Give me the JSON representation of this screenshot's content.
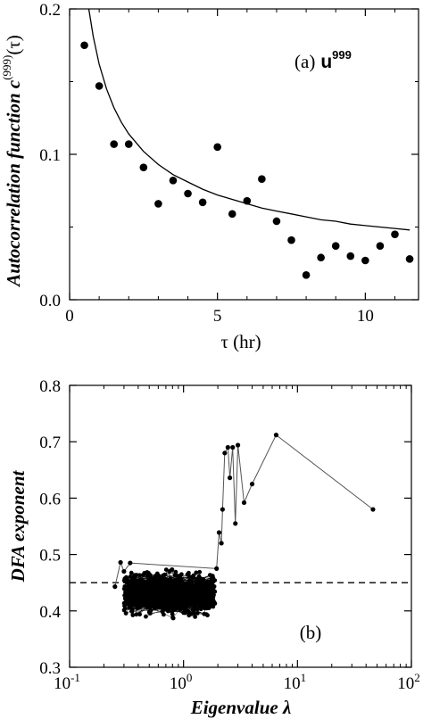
{
  "chart_data": [
    {
      "type": "scatter",
      "panel_label": "(a)",
      "annotation_symbol": "u",
      "annotation_superscript": "999",
      "ylabel_main": "Autocorrelation function c",
      "ylabel_sup": "(999)",
      "ylabel_tail": "(τ)",
      "xlabel": "τ (hr)",
      "xlim": [
        0,
        11.8
      ],
      "ylim": [
        0,
        0.2
      ],
      "xticks": [
        0,
        5,
        10
      ],
      "xtick_labels": [
        "0",
        "5",
        "10"
      ],
      "yticks": [
        0.0,
        0.1,
        0.2
      ],
      "ytick_labels": [
        "0.0",
        "0.1",
        "0.2"
      ],
      "grid": false,
      "series": [
        {
          "kind": "points",
          "x": [
            0.5,
            1.0,
            1.5,
            2.0,
            2.5,
            3.0,
            3.5,
            4.0,
            4.5,
            5.0,
            5.5,
            6.0,
            6.5,
            7.0,
            7.5,
            8.0,
            8.5,
            9.0,
            9.5,
            10.0,
            10.5,
            11.0,
            11.5
          ],
          "y": [
            0.175,
            0.147,
            0.107,
            0.107,
            0.091,
            0.066,
            0.082,
            0.073,
            0.067,
            0.105,
            0.059,
            0.068,
            0.083,
            0.054,
            0.041,
            0.017,
            0.029,
            0.037,
            0.03,
            0.027,
            0.037,
            0.045,
            0.028
          ]
        },
        {
          "kind": "fit-curve",
          "x": [
            0.65,
            0.8,
            1.0,
            1.25,
            1.5,
            1.75,
            2.0,
            2.5,
            3.0,
            3.5,
            4.0,
            4.5,
            5.0,
            5.5,
            6.0,
            6.5,
            7.0,
            7.5,
            8.0,
            8.5,
            9.0,
            9.5,
            10.0,
            10.5,
            11.0,
            11.5
          ],
          "y": [
            0.2,
            0.181,
            0.162,
            0.145,
            0.132,
            0.122,
            0.114,
            0.102,
            0.093,
            0.086,
            0.081,
            0.076,
            0.072,
            0.069,
            0.066,
            0.063,
            0.061,
            0.059,
            0.057,
            0.055,
            0.054,
            0.052,
            0.051,
            0.05,
            0.049,
            0.048
          ]
        }
      ]
    },
    {
      "type": "scatter",
      "panel_label": "(b)",
      "xlabel": "Eigenvalue λ",
      "ylabel": "DFA exponent",
      "xscale": "log",
      "xlim": [
        0.1,
        100
      ],
      "ylim": [
        0.3,
        0.8
      ],
      "xticks": [
        0.1,
        1,
        10,
        100
      ],
      "xtick_base": [
        "10",
        "10",
        "10",
        "10"
      ],
      "xtick_exp": [
        "-1",
        "0",
        "1",
        "2"
      ],
      "yticks": [
        0.3,
        0.4,
        0.5,
        0.6,
        0.7,
        0.8
      ],
      "ytick_labels": [
        "0.3",
        "0.4",
        "0.5",
        "0.6",
        "0.7",
        "0.8"
      ],
      "reference_line_y": 0.45,
      "grid": false,
      "cluster": {
        "lambda_range": [
          0.3,
          1.9
        ],
        "dfa_range": [
          0.38,
          0.48
        ],
        "point_count": 950
      },
      "series": [
        {
          "kind": "connected-points",
          "x": [
            0.25,
            0.28,
            0.3,
            0.34,
            1.95,
            2.05,
            2.15,
            2.2,
            2.3,
            2.45,
            2.55,
            2.7,
            2.85,
            3.0,
            3.4,
            4.0,
            6.5,
            46
          ],
          "y": [
            0.443,
            0.486,
            0.47,
            0.485,
            0.475,
            0.539,
            0.52,
            0.58,
            0.68,
            0.69,
            0.636,
            0.69,
            0.555,
            0.694,
            0.592,
            0.625,
            0.712,
            0.58
          ]
        }
      ]
    }
  ]
}
